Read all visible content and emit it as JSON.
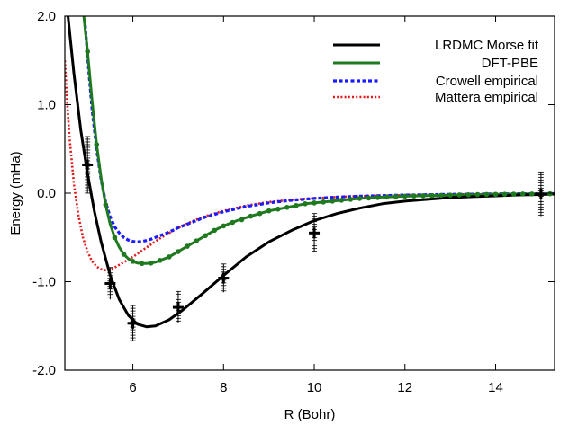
{
  "chart_data": {
    "type": "line",
    "xlabel": "R (Bohr)",
    "ylabel": "Energy (mHa)",
    "xlim": [
      4.5,
      15.3
    ],
    "ylim": [
      -2.0,
      2.0
    ],
    "x_ticks": [
      6,
      8,
      10,
      12,
      14
    ],
    "x_tick_labels": [
      "6",
      "8",
      "10",
      "12",
      "14"
    ],
    "y_ticks": [
      -2.0,
      -1.0,
      0.0,
      1.0,
      2.0
    ],
    "y_tick_labels": [
      "-2.0",
      "-1.0",
      "0.0",
      "1.0",
      "2.0"
    ],
    "grid": false,
    "legend_position": "top-right",
    "series": [
      {
        "name": "LRDMC Morse fit",
        "style": "solid",
        "color": "#000000",
        "x": [
          4.55,
          4.7,
          4.85,
          5.0,
          5.15,
          5.3,
          5.5,
          5.7,
          5.9,
          6.1,
          6.3,
          6.5,
          6.8,
          7.1,
          7.5,
          8.0,
          8.5,
          9.0,
          9.5,
          10.0,
          10.5,
          11.0,
          11.5,
          12.0,
          12.5,
          13.0,
          13.5,
          14.0,
          14.5,
          15.0,
          15.3
        ],
        "y": [
          2.1,
          1.35,
          0.72,
          0.22,
          -0.2,
          -0.55,
          -0.93,
          -1.2,
          -1.38,
          -1.48,
          -1.51,
          -1.5,
          -1.43,
          -1.32,
          -1.15,
          -0.93,
          -0.72,
          -0.55,
          -0.42,
          -0.31,
          -0.23,
          -0.17,
          -0.12,
          -0.09,
          -0.07,
          -0.05,
          -0.04,
          -0.03,
          -0.02,
          -0.015,
          -0.01
        ]
      },
      {
        "name": "DFT-PBE",
        "style": "solid-dotted",
        "color": "#1f7a1f",
        "x": [
          4.9,
          5.0,
          5.1,
          5.2,
          5.3,
          5.4,
          5.5,
          5.6,
          5.7,
          5.8,
          5.9,
          6.0,
          6.1,
          6.2,
          6.3,
          6.4,
          6.5,
          6.6,
          6.8,
          7.0,
          7.2,
          7.4,
          7.6,
          7.8,
          8.0,
          8.3,
          8.6,
          9.0,
          9.4,
          9.8,
          10.2,
          10.6,
          11.0,
          11.5,
          12.0,
          12.5,
          13.0,
          13.5,
          14.0,
          14.5,
          15.0,
          15.3
        ],
        "y": [
          2.1,
          1.6,
          1.05,
          0.55,
          0.17,
          -0.13,
          -0.35,
          -0.5,
          -0.61,
          -0.69,
          -0.74,
          -0.77,
          -0.79,
          -0.795,
          -0.795,
          -0.79,
          -0.78,
          -0.76,
          -0.72,
          -0.66,
          -0.6,
          -0.54,
          -0.48,
          -0.42,
          -0.37,
          -0.31,
          -0.26,
          -0.2,
          -0.16,
          -0.12,
          -0.1,
          -0.08,
          -0.06,
          -0.045,
          -0.035,
          -0.028,
          -0.022,
          -0.017,
          -0.013,
          -0.01,
          -0.008,
          -0.007
        ]
      },
      {
        "name": "Crowell empirical",
        "style": "dashed",
        "color": "#1a1aff",
        "x": [
          4.92,
          5.0,
          5.1,
          5.2,
          5.3,
          5.4,
          5.5,
          5.6,
          5.7,
          5.8,
          5.9,
          6.0,
          6.1,
          6.2,
          6.3,
          6.4,
          6.6,
          6.8,
          7.0,
          7.3,
          7.6,
          8.0,
          8.5,
          9.0,
          9.5,
          10.0,
          10.5,
          11.0,
          11.5,
          12.0,
          13.0,
          14.0,
          15.0,
          15.3
        ],
        "y": [
          2.1,
          1.55,
          0.95,
          0.5,
          0.15,
          -0.1,
          -0.27,
          -0.38,
          -0.45,
          -0.5,
          -0.53,
          -0.545,
          -0.55,
          -0.545,
          -0.535,
          -0.52,
          -0.48,
          -0.44,
          -0.39,
          -0.33,
          -0.27,
          -0.21,
          -0.15,
          -0.11,
          -0.08,
          -0.06,
          -0.045,
          -0.035,
          -0.027,
          -0.021,
          -0.013,
          -0.008,
          -0.005,
          -0.004
        ]
      },
      {
        "name": "Mattera empirical",
        "style": "dotted",
        "color": "#e31a1c",
        "x": [
          4.5,
          4.55,
          4.6,
          4.7,
          4.8,
          4.9,
          5.0,
          5.1,
          5.2,
          5.3,
          5.4,
          5.5,
          5.6,
          5.7,
          5.8,
          6.0,
          6.2,
          6.4,
          6.6,
          6.8,
          7.0,
          7.3,
          7.6,
          8.0,
          8.5,
          9.0,
          9.5,
          10.0,
          10.5,
          11.0,
          12.0,
          13.0,
          14.0,
          15.0,
          15.3
        ],
        "y": [
          1.5,
          1.05,
          0.65,
          0.1,
          -0.25,
          -0.5,
          -0.66,
          -0.77,
          -0.83,
          -0.86,
          -0.87,
          -0.86,
          -0.84,
          -0.81,
          -0.78,
          -0.72,
          -0.65,
          -0.58,
          -0.51,
          -0.45,
          -0.39,
          -0.32,
          -0.26,
          -0.2,
          -0.14,
          -0.1,
          -0.075,
          -0.058,
          -0.045,
          -0.035,
          -0.022,
          -0.014,
          -0.009,
          -0.006,
          -0.005
        ]
      }
    ],
    "dft_markers": {
      "series": "DFT-PBE",
      "x": [
        5.0,
        5.2,
        5.4,
        5.6,
        5.8,
        6.0,
        6.2,
        6.4,
        6.6,
        6.8,
        7.0,
        7.2,
        7.4,
        7.6,
        7.8,
        8.0,
        8.2,
        8.4,
        8.6,
        8.8,
        9.0,
        9.2,
        9.4,
        9.6,
        9.8,
        10.0,
        10.2,
        10.4,
        10.6,
        10.8,
        11.0,
        11.2,
        11.4,
        11.6,
        11.8,
        12.0,
        12.2,
        12.4,
        12.6,
        12.8,
        13.0,
        13.2,
        13.4,
        13.6,
        13.8,
        14.0,
        14.2,
        14.4,
        14.6,
        14.8,
        15.0,
        15.2
      ],
      "y": [
        1.6,
        0.55,
        -0.13,
        -0.5,
        -0.69,
        -0.77,
        -0.795,
        -0.79,
        -0.76,
        -0.72,
        -0.66,
        -0.6,
        -0.54,
        -0.48,
        -0.42,
        -0.37,
        -0.33,
        -0.3,
        -0.26,
        -0.23,
        -0.2,
        -0.18,
        -0.16,
        -0.14,
        -0.12,
        -0.11,
        -0.1,
        -0.09,
        -0.08,
        -0.07,
        -0.06,
        -0.055,
        -0.05,
        -0.045,
        -0.04,
        -0.035,
        -0.032,
        -0.03,
        -0.027,
        -0.024,
        -0.022,
        -0.02,
        -0.018,
        -0.016,
        -0.014,
        -0.013,
        -0.012,
        -0.011,
        -0.01,
        -0.009,
        -0.008,
        -0.007
      ]
    },
    "lrdmc_points": {
      "x": [
        5.0,
        5.5,
        6.0,
        7.0,
        8.0,
        10.0,
        15.0
      ],
      "y": [
        0.32,
        -1.02,
        -1.47,
        -1.29,
        -0.96,
        -0.45,
        -0.01
      ],
      "err": [
        0.32,
        0.18,
        0.2,
        0.18,
        0.16,
        0.22,
        0.25
      ]
    }
  }
}
